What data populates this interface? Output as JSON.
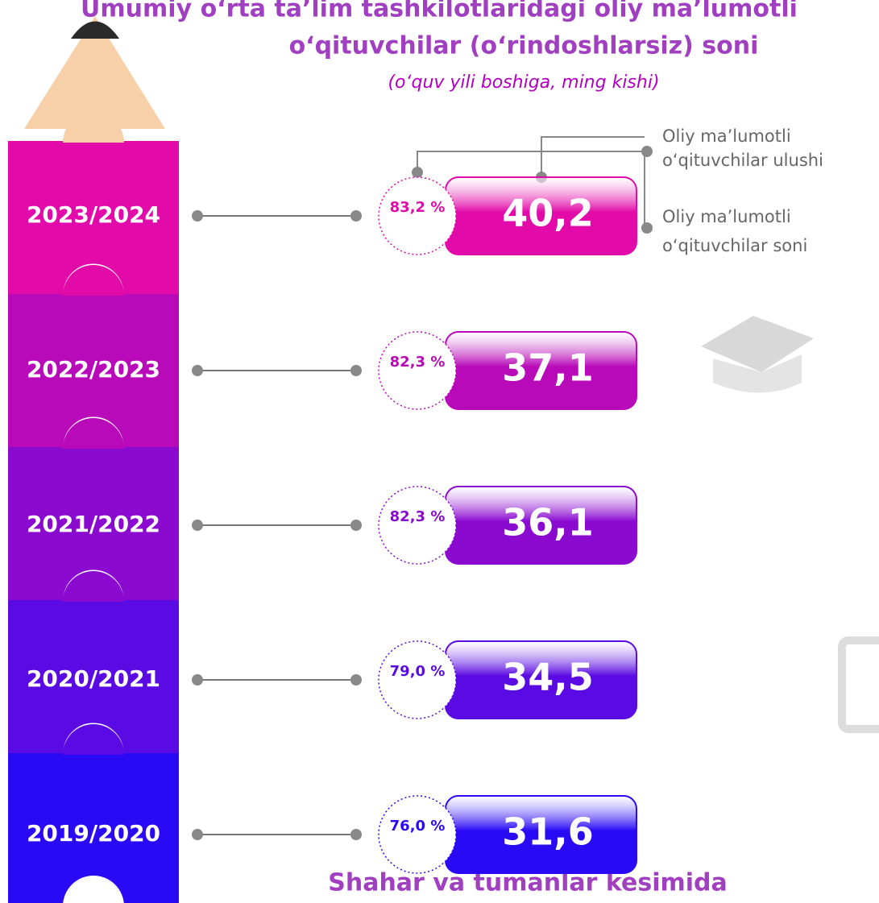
{
  "header": {
    "title_lines": [
      "Umumiy o‘rta ta’lim tashkilotlaridagi oliy ma’lumotli",
      "o‘qituvchilar (o‘rindoshlarsiz) soni"
    ],
    "subtitle": "(o‘quv yili boshiga, ming kishi)"
  },
  "legend": [
    {
      "lines": [
        "Oliy ma’lumotli",
        "o‘qituvchilar ulushi"
      ]
    },
    {
      "lines": [
        "Oliy ma’lumotli",
        "o‘qituvchilar soni"
      ]
    }
  ],
  "rows": [
    {
      "year": "2023/2024",
      "share": "83,2 %",
      "count": "40,2",
      "color": "#e20aa8"
    },
    {
      "year": "2022/2023",
      "share": "82,3 %",
      "count": "37,1",
      "color": "#b80ab8"
    },
    {
      "year": "2021/2022",
      "share": "82,3 %",
      "count": "36,1",
      "color": "#8a0ad0"
    },
    {
      "year": "2020/2021",
      "share": "79,0 %",
      "count": "34,5",
      "color": "#5a0ae2"
    },
    {
      "year": "2019/2020",
      "share": "76,0 %",
      "count": "31,6",
      "color": "#2a0af5"
    }
  ],
  "footer": "Shahar va tumanlar kesimida"
}
